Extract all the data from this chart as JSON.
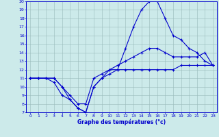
{
  "xlabel": "Graphe des températures (°c)",
  "background_color": "#cceaea",
  "line_color": "#0000cc",
  "xlim": [
    0,
    23
  ],
  "ylim": [
    7,
    20
  ],
  "xticks": [
    0,
    1,
    2,
    3,
    4,
    5,
    6,
    7,
    8,
    9,
    10,
    11,
    12,
    13,
    14,
    15,
    16,
    17,
    18,
    19,
    20,
    21,
    22,
    23
  ],
  "yticks": [
    7,
    8,
    9,
    10,
    11,
    12,
    13,
    14,
    15,
    16,
    17,
    18,
    19,
    20
  ],
  "line_max_x": [
    0,
    1,
    2,
    3,
    4,
    5,
    6,
    7,
    8,
    9,
    10,
    11,
    12,
    13,
    14,
    15,
    16,
    17,
    18,
    19,
    20,
    21,
    22,
    23
  ],
  "line_max_y": [
    11,
    11,
    11,
    11,
    10,
    8.5,
    7.5,
    7,
    10,
    11,
    12,
    12,
    14.5,
    17,
    19,
    20,
    20,
    18,
    16,
    15.5,
    14.5,
    14,
    13,
    12.5
  ],
  "line_avg_x": [
    0,
    1,
    2,
    3,
    4,
    5,
    6,
    7,
    8,
    9,
    10,
    11,
    12,
    13,
    14,
    15,
    16,
    17,
    18,
    19,
    20,
    21,
    22,
    23
  ],
  "line_avg_y": [
    11,
    11,
    11,
    11,
    10,
    9,
    8,
    8,
    11,
    11.5,
    12,
    12.5,
    13,
    13.5,
    14,
    14.5,
    14.5,
    14,
    13.5,
    13.5,
    13.5,
    13.5,
    14,
    12.5
  ],
  "line_min_x": [
    0,
    1,
    2,
    3,
    4,
    5,
    6,
    7,
    8,
    9,
    10,
    11,
    12,
    13,
    14,
    15,
    16,
    17,
    18,
    19,
    20,
    21,
    22,
    23
  ],
  "line_min_y": [
    11,
    11,
    11,
    10.5,
    9,
    8.5,
    7.5,
    7,
    10,
    11,
    11.5,
    12,
    12,
    12,
    12,
    12,
    12,
    12,
    12,
    12.5,
    12.5,
    12.5,
    12.5,
    12.5
  ]
}
